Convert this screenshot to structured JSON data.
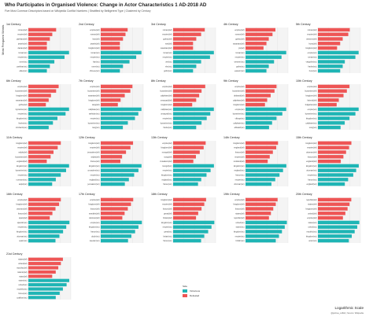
{
  "title": "Who Participates in Organised Violence: Change in Actor Characteristics 1 AD-2018 AD",
  "subtitle": "Five Most Common Descriptors based on Wikipedia Conflict Numbers | Stratified by Belligerent Type | Clustered by Century",
  "ylabel": "Most Frequent Words",
  "footer_scale": "Logarithmic Scale",
  "footer_credit": "@joshua_coffelt | Source: Wikipedia",
  "legend": {
    "title": "Side",
    "items": [
      {
        "label": "Victorious",
        "color": "#1fb5b5"
      },
      {
        "label": "Defeated",
        "color": "#ee5555"
      }
    ]
  },
  "chart_data": [
    {
      "type": "bar",
      "title": "1st Century",
      "categories": [
        "roman(def)",
        "empire(def)",
        "parthian(def)",
        "jewish(def)",
        "dacian(def)",
        "roman(vic)",
        "empire(vic)",
        "rome(vic)",
        "parthian(vic)",
        "allies(vic)"
      ],
      "defeated": [
        7,
        5,
        4,
        3,
        3
      ],
      "victorious": [
        20,
        14,
        6,
        4,
        3
      ]
    },
    {
      "type": "bar",
      "title": "2nd Century",
      "categories": [
        "empire(def)",
        "roman(def)",
        "han(def)",
        "jewish(def)",
        "kingdom(def)",
        "roman(vic)",
        "empire(vic)",
        "han(vic)",
        "rome(vic)",
        "chinese(vic)"
      ],
      "defeated": [
        6,
        5,
        4,
        3,
        3
      ],
      "victorious": [
        18,
        12,
        7,
        4,
        3
      ]
    },
    {
      "type": "bar",
      "title": "3rd Century",
      "categories": [
        "roman(def)",
        "empire(def)",
        "gothic(def)",
        "wei(def)",
        "sasanian(def)",
        "roman(vic)",
        "empire(vic)",
        "wei(vic)",
        "shu(vic)",
        "goths(vic)"
      ],
      "defeated": [
        8,
        6,
        4,
        3,
        3
      ],
      "victorious": [
        16,
        12,
        6,
        4,
        3
      ]
    },
    {
      "type": "bar",
      "title": "4th Century",
      "categories": [
        "empire(def)",
        "roman(def)",
        "gothic(def)",
        "sasanian(def)",
        "jin(def)",
        "roman(vic)",
        "empire(vic)",
        "western(vic)",
        "goths(vic)",
        "eastern(vic)"
      ],
      "defeated": [
        9,
        7,
        5,
        4,
        3
      ],
      "victorious": [
        22,
        15,
        8,
        5,
        4
      ]
    },
    {
      "type": "bar",
      "title": "5th Century",
      "categories": [
        "roman(def)",
        "empire(def)",
        "western(def)",
        "huns(def)",
        "kingdom(def)",
        "empire(vic)",
        "roman(vic)",
        "visigoths(vic)",
        "franks(vic)",
        "huns(vic)"
      ],
      "defeated": [
        9,
        8,
        5,
        4,
        3
      ],
      "victorious": [
        18,
        14,
        6,
        5,
        4
      ]
    },
    {
      "type": "bar",
      "title": "6th Century",
      "categories": [
        "empire(def)",
        "byzantine(def)",
        "kingdom(def)",
        "sasanian(def)",
        "goths(def)",
        "byzantine(vic)",
        "empire(vic)",
        "kingdom(vic)",
        "franks(vic)",
        "lombards(vic)"
      ],
      "defeated": [
        10,
        8,
        5,
        4,
        3
      ],
      "victorious": [
        24,
        18,
        9,
        6,
        4
      ]
    },
    {
      "type": "bar",
      "title": "7th Century",
      "categories": [
        "empire(def)",
        "byzantine(def)",
        "sasanian(def)",
        "kingdom(def)",
        "tang(def)",
        "caliphate(vic)",
        "rashidun(vic)",
        "empire(vic)",
        "byzantine(vic)",
        "tang(vic)"
      ],
      "defeated": [
        12,
        10,
        6,
        4,
        3
      ],
      "victorious": [
        26,
        20,
        15,
        8,
        5
      ]
    },
    {
      "type": "bar",
      "title": "8th Century",
      "categories": [
        "empire(def)",
        "byzantine(def)",
        "caliphate(def)",
        "umayyad(def)",
        "kingdom(def)",
        "caliphate(vic)",
        "umayyad(vic)",
        "empire(vic)",
        "byzantine(vic)",
        "franks(vic)"
      ],
      "defeated": [
        14,
        10,
        8,
        6,
        4
      ],
      "victorious": [
        30,
        22,
        16,
        10,
        6
      ]
    },
    {
      "type": "bar",
      "title": "9th Century",
      "categories": [
        "empire(def)",
        "byzantine(def)",
        "abbasid(def)",
        "caliphate(def)",
        "kingdom(def)",
        "empire(vic)",
        "byzantine(vic)",
        "vikings(vic)",
        "caliphate(vic)",
        "abbasid(vic)"
      ],
      "defeated": [
        12,
        10,
        7,
        5,
        4
      ],
      "victorious": [
        28,
        20,
        12,
        8,
        6
      ]
    },
    {
      "type": "bar",
      "title": "10th Century",
      "categories": [
        "empire(def)",
        "byzantine(def)",
        "kingdom(def)",
        "fatimid(def)",
        "bulgarian(def)",
        "empire(vic)",
        "byzantine(vic)",
        "kingdom(vic)",
        "caliphate(vic)",
        "song(vic)"
      ],
      "defeated": [
        14,
        11,
        8,
        5,
        4
      ],
      "victorious": [
        32,
        24,
        14,
        9,
        6
      ]
    },
    {
      "type": "bar",
      "title": "11th Century",
      "categories": [
        "kingdom(def)",
        "empire(def)",
        "seljuk(def)",
        "byzantine(def)",
        "england(def)",
        "kingdom(vic)",
        "byzantine(vic)",
        "empire(vic)",
        "normans(vic)",
        "seljuk(vic)"
      ],
      "defeated": [
        16,
        12,
        8,
        6,
        4
      ],
      "victorious": [
        34,
        26,
        16,
        10,
        7
      ]
    },
    {
      "type": "bar",
      "title": "12th Century",
      "categories": [
        "kingdom(def)",
        "empire(def)",
        "jerusalem(def)",
        "seljuk(def)",
        "france(def)",
        "kingdom(vic)",
        "crusaders(vic)",
        "empire(vic)",
        "england(vic)",
        "jerusalem(vic)"
      ],
      "defeated": [
        18,
        14,
        9,
        6,
        5
      ],
      "victorious": [
        40,
        30,
        20,
        12,
        8
      ]
    },
    {
      "type": "bar",
      "title": "13th Century",
      "categories": [
        "empire(def)",
        "kingdom(def)",
        "mongol(def)",
        "song(def)",
        "crusaders(def)",
        "mongol(vic)",
        "empire(vic)",
        "kingdom(vic)",
        "england(vic)",
        "france(vic)"
      ],
      "defeated": [
        22,
        18,
        12,
        8,
        6
      ],
      "victorious": [
        50,
        36,
        24,
        14,
        10
      ]
    },
    {
      "type": "bar",
      "title": "14th Century",
      "categories": [
        "kingdom(def)",
        "england(def)",
        "france(def)",
        "empire(def)",
        "scotland(def)",
        "kingdom(vic)",
        "england(vic)",
        "france(vic)",
        "empire(vic)",
        "ottoman(vic)"
      ],
      "defeated": [
        24,
        20,
        14,
        10,
        8
      ],
      "victorious": [
        56,
        40,
        28,
        18,
        12
      ]
    },
    {
      "type": "bar",
      "title": "15th Century",
      "categories": [
        "kingdom(def)",
        "empire(def)",
        "ottoman(def)",
        "france(def)",
        "england(def)",
        "kingdom(vic)",
        "ottoman(vic)",
        "empire(vic)",
        "france(vic)",
        "england(vic)"
      ],
      "defeated": [
        28,
        22,
        16,
        12,
        9
      ],
      "victorious": [
        60,
        46,
        34,
        20,
        14
      ]
    },
    {
      "type": "bar",
      "title": "16th Century",
      "categories": [
        "empire(def)",
        "kingdom(def)",
        "ottoman(def)",
        "france(def)",
        "spain(def)",
        "spanish(vic)",
        "empire(vic)",
        "kingdom(vic)",
        "ottoman(vic)",
        "spain(vic)"
      ],
      "defeated": [
        60,
        48,
        30,
        20,
        14
      ],
      "victorious": [
        180,
        120,
        80,
        50,
        30
      ]
    },
    {
      "type": "bar",
      "title": "17th Century",
      "categories": [
        "empire(def)",
        "kingdom(def)",
        "france(def)",
        "swedish(def)",
        "ottoman(def)",
        "empire(vic)",
        "kingdom(vic)",
        "france(vic)",
        "dutch(vic)",
        "sweden(vic)"
      ],
      "defeated": [
        70,
        52,
        34,
        22,
        16
      ],
      "victorious": [
        220,
        140,
        90,
        55,
        35
      ]
    },
    {
      "type": "bar",
      "title": "18th Century",
      "categories": [
        "kingdom(def)",
        "empire(def)",
        "france(def)",
        "great(def)",
        "britain(def)",
        "kingdom(vic)",
        "empire(vic)",
        "great(vic)",
        "britain(vic)",
        "france(vic)"
      ],
      "defeated": [
        90,
        70,
        48,
        30,
        22
      ],
      "victorious": [
        280,
        190,
        120,
        70,
        45
      ]
    },
    {
      "type": "bar",
      "title": "19th Century",
      "categories": [
        "empire(def)",
        "kingdom(def)",
        "france(def)",
        "states(def)",
        "republic(def)",
        "united(vic)",
        "states(vic)",
        "kingdom(vic)",
        "empire(vic)",
        "british(vic)"
      ],
      "defeated": [
        160,
        120,
        80,
        55,
        40
      ],
      "victorious": [
        700,
        500,
        320,
        200,
        120
      ]
    },
    {
      "type": "bar",
      "title": "20th Century",
      "categories": [
        "republic(def)",
        "states(def)",
        "kingdom(def)",
        "united(def)",
        "empire(def)",
        "states(vic)",
        "united(vic)",
        "republic(vic)",
        "kingdom(vic)",
        "union(vic)"
      ],
      "defeated": [
        240,
        180,
        130,
        90,
        60
      ],
      "victorious": [
        900,
        640,
        420,
        260,
        160
      ]
    },
    {
      "type": "bar",
      "title": "21st Century",
      "categories": [
        "states(def)",
        "united(def)",
        "republic(def)",
        "islamic(def)",
        "state(def)",
        "states(vic)",
        "united(vic)",
        "republic(vic)",
        "forces(vic)",
        "coalition(vic)"
      ],
      "defeated": [
        40,
        32,
        24,
        18,
        12
      ],
      "victorious": [
        80,
        60,
        40,
        28,
        18
      ]
    }
  ]
}
